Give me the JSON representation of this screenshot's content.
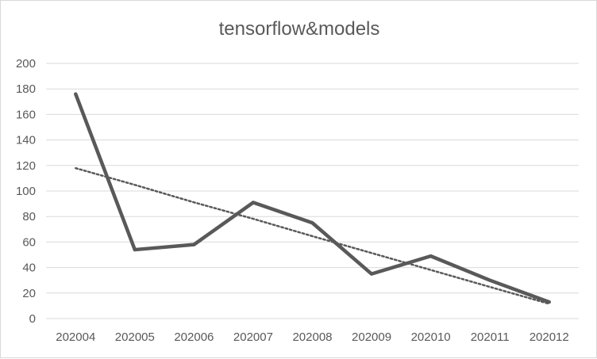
{
  "chart_data": {
    "type": "line",
    "title": "tensorflow&models",
    "xlabel": "",
    "ylabel": "",
    "categories": [
      "202004",
      "202005",
      "202006",
      "202007",
      "202008",
      "202009",
      "202010",
      "202011",
      "202012"
    ],
    "series": [
      {
        "values": [
          176,
          54,
          58,
          91,
          75,
          35,
          49,
          30,
          13
        ],
        "color": "#595959",
        "style": "solid"
      },
      {
        "type": "linear-trendline",
        "values": [
          117.9,
          104.8,
          91.1,
          78.2,
          64.6,
          51.4,
          38.1,
          24.8,
          11.6
        ],
        "color": "#595959",
        "style": "dotted"
      }
    ],
    "ylim": [
      0,
      200
    ],
    "yticks": [
      0,
      20,
      40,
      60,
      80,
      100,
      120,
      140,
      160,
      180,
      200
    ],
    "grid": true,
    "legend": "none"
  }
}
